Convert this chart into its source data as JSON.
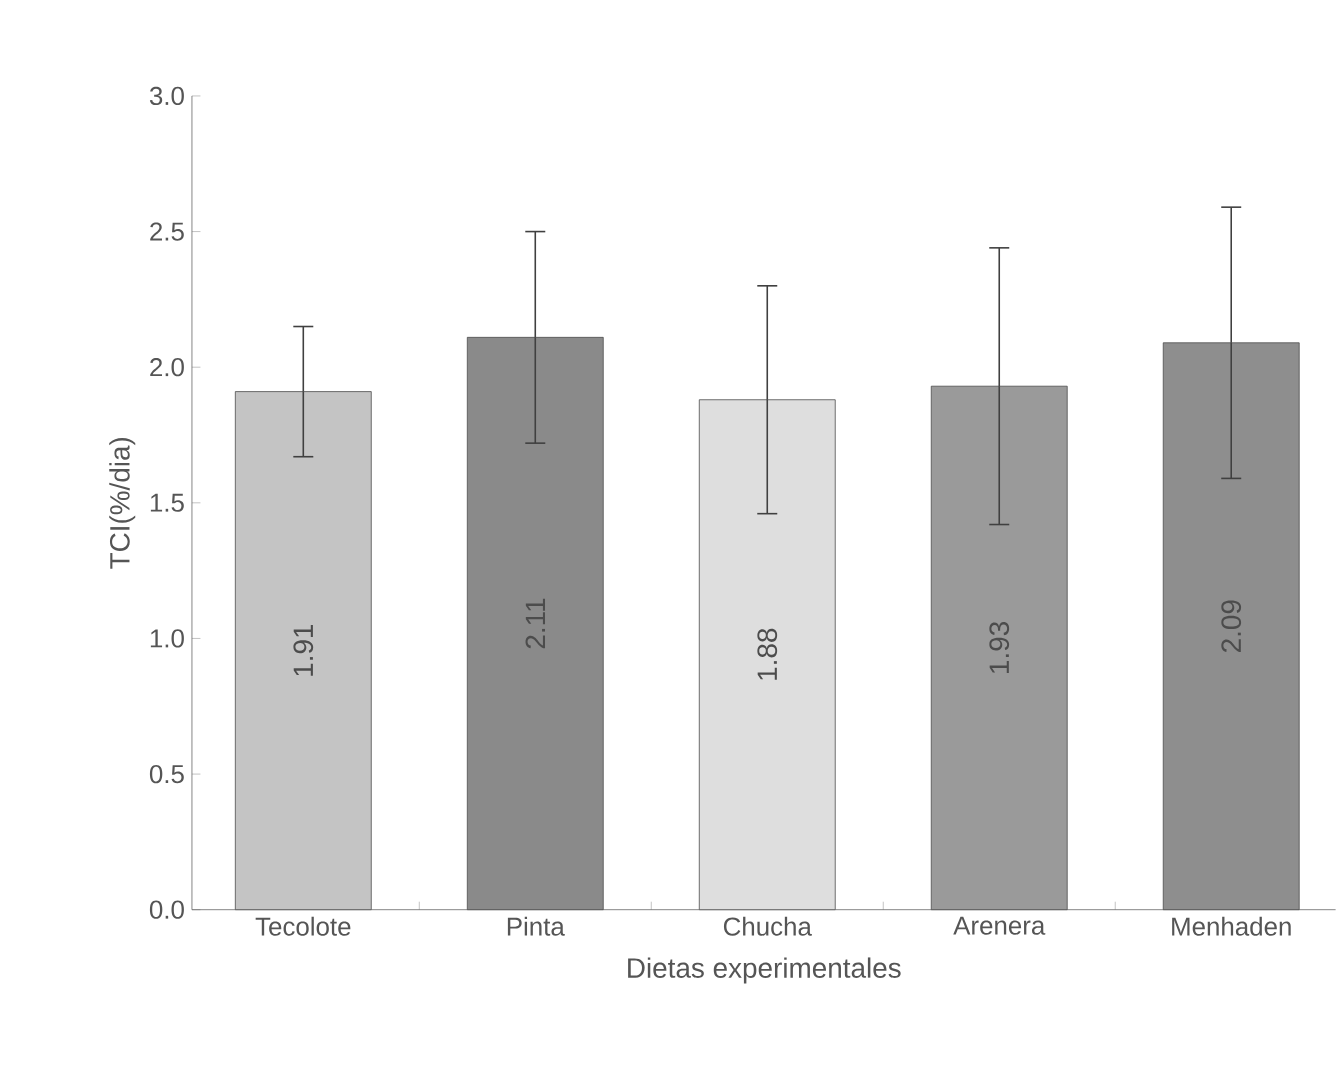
{
  "chart_data": {
    "type": "bar",
    "xlabel": "Dietas experimentales",
    "ylabel": "TCI(%/dia)",
    "categories": [
      "Tecolote",
      "Pinta",
      "Chucha",
      "Arenera",
      "Menhaden"
    ],
    "values": [
      1.91,
      2.11,
      1.88,
      1.93,
      2.09
    ],
    "value_labels": [
      "1.91",
      "2.11",
      "1.88",
      "1.93",
      "2.09"
    ],
    "errors": [
      0.24,
      0.39,
      0.42,
      0.51,
      0.5
    ],
    "colors": [
      "#c4c4c4",
      "#8a8a8a",
      "#dedede",
      "#9a9a9a",
      "#8e8e8e"
    ],
    "ylim": [
      0,
      3
    ],
    "yticks": [
      {
        "value": 0,
        "label": "0.0"
      },
      {
        "value": 0.5,
        "label": "0.5"
      },
      {
        "value": 1,
        "label": "1.0"
      },
      {
        "value": 1.5,
        "label": "1.5"
      },
      {
        "value": 2,
        "label": "2.0"
      },
      {
        "value": 2.5,
        "label": "2.5"
      },
      {
        "value": 3,
        "label": "3.0"
      }
    ],
    "grid": false
  }
}
